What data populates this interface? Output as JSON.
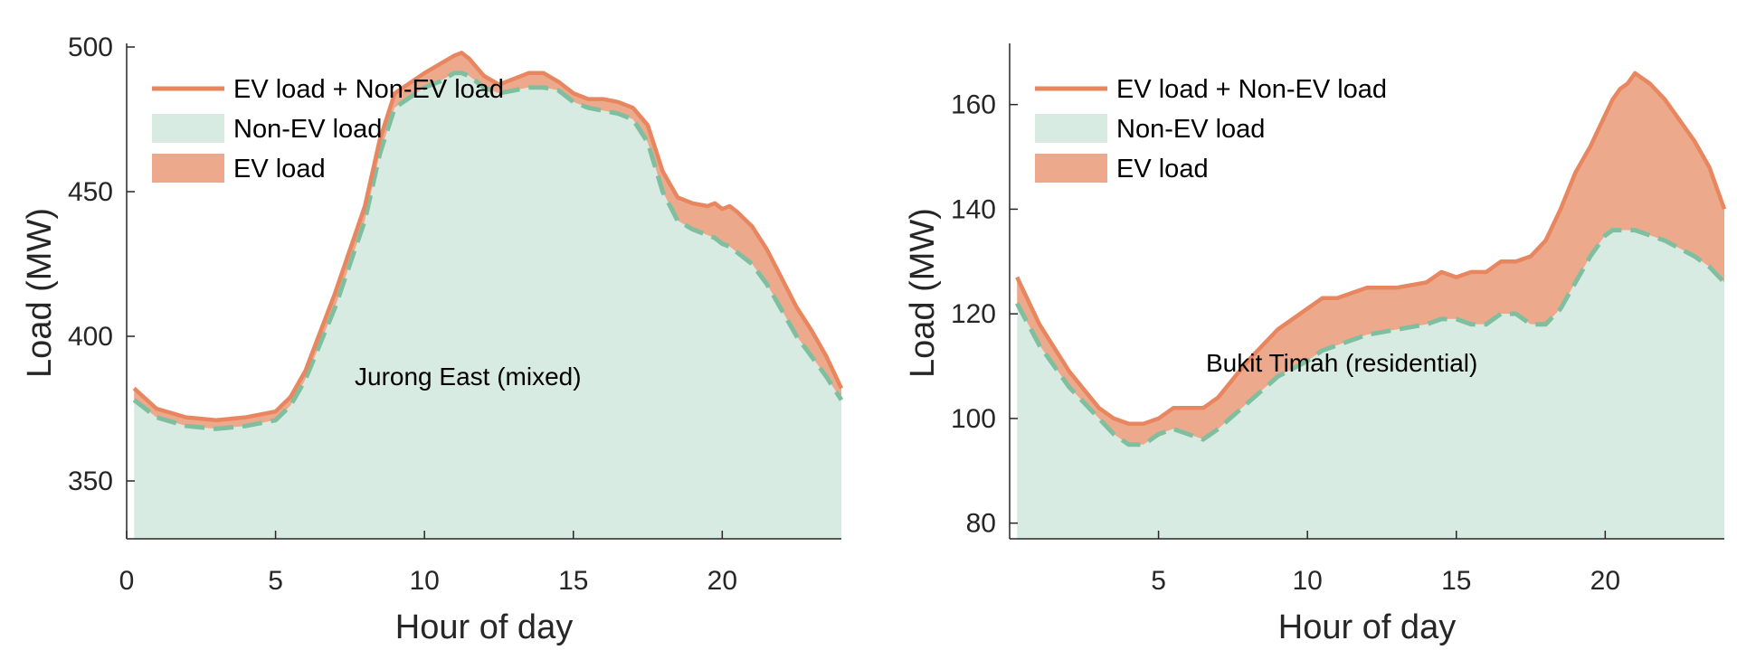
{
  "colors": {
    "total": "#E8865F",
    "ev_fill": "#EDA98C",
    "non_ev_fill": "#D8EBE2",
    "non_ev_line": "#7FBFA0",
    "axis": "#262626"
  },
  "chart_data": [
    {
      "type": "area",
      "annotation": "Jurong East (mixed)",
      "xlabel": "Hour of day",
      "ylabel": "Load (MW)",
      "xlim": [
        0,
        24
      ],
      "ylim": [
        330,
        500
      ],
      "xticks": [
        "0",
        "5",
        "10",
        "15",
        "20"
      ],
      "xtick_values": [
        0,
        5,
        10,
        15,
        20
      ],
      "yticks": [
        "350",
        "400",
        "450",
        "500"
      ],
      "ytick_values": [
        350,
        400,
        450,
        500
      ],
      "legend_position": "top-left",
      "legend": [
        "EV load + Non-EV load",
        "Non-EV load",
        "EV load"
      ],
      "x": [
        0.25,
        1,
        2,
        3,
        4,
        5,
        5.5,
        6,
        7,
        8,
        8.5,
        9,
        10,
        10.5,
        11,
        11.25,
        11.5,
        12,
        12.5,
        13,
        13.5,
        14,
        14.5,
        15,
        15.5,
        16,
        16.5,
        17,
        17.5,
        18,
        18.5,
        19,
        19.5,
        19.75,
        20,
        20.25,
        20.5,
        21,
        21.5,
        22,
        22.5,
        23,
        23.5,
        24
      ],
      "series": [
        {
          "name": "EV load + Non-EV load",
          "values": [
            382,
            375,
            372,
            371,
            372,
            374,
            379,
            388,
            415,
            445,
            468,
            484,
            491,
            494,
            497,
            498,
            496,
            490,
            487,
            489,
            491,
            491,
            488,
            484,
            482,
            482,
            481,
            479,
            473,
            457,
            448,
            446,
            445,
            446,
            444,
            445,
            443,
            438,
            430,
            420,
            410,
            402,
            393,
            382
          ]
        },
        {
          "name": "Non-EV load",
          "values": [
            378,
            372,
            369,
            368,
            369,
            371,
            376,
            385,
            410,
            440,
            463,
            479,
            486,
            488,
            491,
            491,
            490,
            486,
            484,
            485,
            486,
            486,
            485,
            481,
            479,
            478,
            477,
            475,
            467,
            450,
            440,
            437,
            435,
            434,
            432,
            431,
            429,
            425,
            418,
            409,
            400,
            393,
            386,
            378
          ]
        }
      ]
    },
    {
      "type": "area",
      "annotation": "Bukit Timah (residential)",
      "xlabel": "Hour of day",
      "ylabel": "Load (MW)",
      "xlim": [
        0,
        24
      ],
      "ylim": [
        77,
        171
      ],
      "xticks": [
        "5",
        "10",
        "15",
        "20"
      ],
      "xtick_values": [
        5,
        10,
        15,
        20
      ],
      "yticks": [
        "80",
        "100",
        "120",
        "140",
        "160"
      ],
      "ytick_values": [
        80,
        100,
        120,
        140,
        160
      ],
      "legend_position": "top-left",
      "legend": [
        "EV load + Non-EV load",
        "Non-EV load",
        "EV load"
      ],
      "x": [
        0.25,
        1,
        2,
        3,
        3.5,
        4,
        4.5,
        5,
        5.5,
        6,
        6.5,
        7,
        8,
        9,
        10,
        10.5,
        11,
        11.5,
        12,
        13,
        14,
        14.5,
        15,
        15.5,
        16,
        16.5,
        17,
        17.5,
        18,
        18.5,
        19,
        19.5,
        20,
        20.25,
        20.5,
        20.75,
        21,
        21.5,
        22,
        23,
        23.5,
        24
      ],
      "series": [
        {
          "name": "EV load + Non-EV load",
          "values": [
            127,
            118,
            109,
            102,
            100,
            99,
            99,
            100,
            102,
            102,
            102,
            104,
            111,
            117,
            121,
            123,
            123,
            124,
            125,
            125,
            126,
            128,
            127,
            128,
            128,
            130,
            130,
            131,
            134,
            140,
            147,
            152,
            158,
            161,
            163,
            164,
            166,
            164,
            161,
            153,
            148,
            140
          ]
        },
        {
          "name": "Non-EV load",
          "values": [
            122,
            114,
            106,
            100,
            97,
            95,
            95,
            97,
            98,
            97,
            96,
            98,
            103,
            108,
            111,
            113,
            114,
            115,
            116,
            117,
            118,
            119,
            119,
            118,
            118,
            120,
            120,
            118,
            118,
            121,
            126,
            131,
            135,
            136,
            136,
            136,
            136,
            135,
            134,
            131,
            129,
            126
          ]
        }
      ]
    }
  ]
}
